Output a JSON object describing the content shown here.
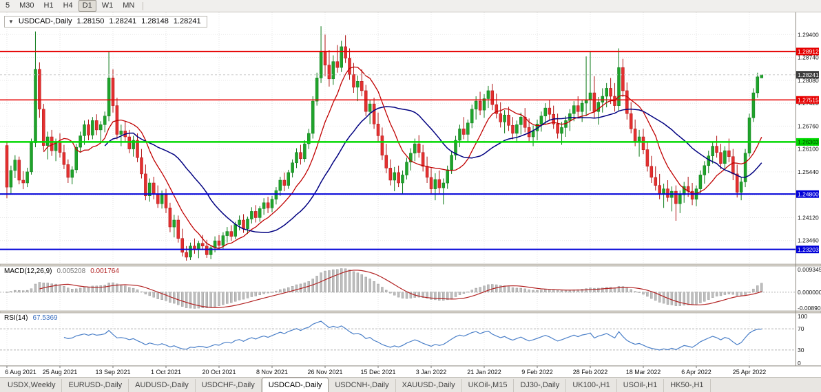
{
  "toolbar": {
    "timeframes": [
      "5",
      "M30",
      "H1",
      "H4",
      "D1",
      "W1",
      "MN"
    ],
    "active_timeframe": "D1"
  },
  "chart_title": {
    "dropdown_icon": "▼",
    "symbol": "USDCAD-,Daily",
    "open": "1.28150",
    "high": "1.28241",
    "low": "1.28148",
    "close": "1.28241"
  },
  "price_axis": {
    "min": 1.2278,
    "max": 1.3004,
    "ticks": [
      1.294,
      1.2874,
      1.2808,
      1.2742,
      1.2676,
      1.261,
      1.2544,
      1.2478,
      1.2412,
      1.2346
    ]
  },
  "chart_data": {
    "type": "candlestick",
    "symbol": "USDCAD-,Daily",
    "timeframe": "Daily",
    "x_labels": [
      "6 Aug 2021",
      "25 Aug 2021",
      "13 Sep 2021",
      "1 Oct 2021",
      "20 Oct 2021",
      "8 Nov 2021",
      "26 Nov 2021",
      "15 Dec 2021",
      "3 Jan 2022",
      "21 Jan 2022",
      "9 Feb 2022",
      "28 Feb 2022",
      "18 Mar 2022",
      "6 Apr 2022",
      "25 Apr 2022"
    ],
    "x_label_step": 13,
    "ma_fast_period": 10,
    "ma_slow_period": 25,
    "hlines": [
      {
        "value": 1.28912,
        "label": "1.28912",
        "color": "#e60000",
        "width": 2,
        "text_color": "#ffffff"
      },
      {
        "value": 1.27515,
        "label": "1.27515",
        "color": "#e60000",
        "width": 1.5,
        "text_color": "#ffffff"
      },
      {
        "value": 1.26303,
        "label": "1.26303",
        "color": "#00d800",
        "width": 2.5,
        "text_color": "#003300"
      },
      {
        "value": 1.248,
        "label": "1.24800",
        "color": "#0000d8",
        "width": 2,
        "text_color": "#ffffff"
      },
      {
        "value": 1.23203,
        "label": "1.23203",
        "color": "#0000d8",
        "width": 2,
        "text_color": "#ffffff"
      }
    ],
    "bid": {
      "value": 1.28241,
      "label": "1.28241",
      "bg": "#3c3c3c",
      "text_color": "#ffffff"
    },
    "candles": [
      [
        1.262,
        1.2632,
        1.2468,
        1.25
      ],
      [
        1.25,
        1.2562,
        1.2482,
        1.2548
      ],
      [
        1.2548,
        1.2592,
        1.2526,
        1.2578
      ],
      [
        1.2578,
        1.2588,
        1.2508,
        1.252
      ],
      [
        1.252,
        1.2546,
        1.2494,
        1.2512
      ],
      [
        1.2512,
        1.2556,
        1.25,
        1.2544
      ],
      [
        1.2544,
        1.264,
        1.2536,
        1.2628
      ],
      [
        1.2628,
        1.2949,
        1.2615,
        1.284
      ],
      [
        1.284,
        1.286,
        1.27,
        1.2725
      ],
      [
        1.2725,
        1.274,
        1.2605,
        1.262
      ],
      [
        1.262,
        1.266,
        1.258,
        1.2645
      ],
      [
        1.2645,
        1.2665,
        1.259,
        1.2605
      ],
      [
        1.2605,
        1.264,
        1.2575,
        1.263
      ],
      [
        1.263,
        1.2655,
        1.2585,
        1.26
      ],
      [
        1.26,
        1.2622,
        1.2552,
        1.2565
      ],
      [
        1.2565,
        1.258,
        1.2512,
        1.2528
      ],
      [
        1.2528,
        1.256,
        1.2508,
        1.255
      ],
      [
        1.255,
        1.2625,
        1.254,
        1.2615
      ],
      [
        1.2615,
        1.266,
        1.26,
        1.2648
      ],
      [
        1.2648,
        1.2692,
        1.2622,
        1.268
      ],
      [
        1.268,
        1.2695,
        1.2635,
        1.265
      ],
      [
        1.265,
        1.2702,
        1.2638,
        1.2692
      ],
      [
        1.2692,
        1.271,
        1.265,
        1.2665
      ],
      [
        1.2665,
        1.269,
        1.2632,
        1.268
      ],
      [
        1.268,
        1.2718,
        1.2658,
        1.2705
      ],
      [
        1.2705,
        1.289,
        1.269,
        1.2815
      ],
      [
        1.2815,
        1.284,
        1.2715,
        1.2735
      ],
      [
        1.2735,
        1.2758,
        1.2638,
        1.2652
      ],
      [
        1.2652,
        1.268,
        1.2618,
        1.2662
      ],
      [
        1.2662,
        1.269,
        1.263,
        1.2645
      ],
      [
        1.2645,
        1.2665,
        1.2598,
        1.261
      ],
      [
        1.261,
        1.2648,
        1.2588,
        1.2635
      ],
      [
        1.2635,
        1.2655,
        1.2572,
        1.2585
      ],
      [
        1.2585,
        1.261,
        1.2525,
        1.2538
      ],
      [
        1.2538,
        1.2565,
        1.2462,
        1.2475
      ],
      [
        1.2475,
        1.2525,
        1.2458,
        1.2512
      ],
      [
        1.2512,
        1.253,
        1.2465,
        1.248
      ],
      [
        1.248,
        1.2505,
        1.244,
        1.2452
      ],
      [
        1.2452,
        1.249,
        1.2438,
        1.2478
      ],
      [
        1.2478,
        1.2495,
        1.2425,
        1.244
      ],
      [
        1.244,
        1.2455,
        1.237,
        1.2385
      ],
      [
        1.2385,
        1.242,
        1.2355,
        1.2405
      ],
      [
        1.2405,
        1.2418,
        1.234,
        1.2352
      ],
      [
        1.2352,
        1.238,
        1.23,
        1.2312
      ],
      [
        1.2312,
        1.233,
        1.2288,
        1.2298
      ],
      [
        1.2298,
        1.234,
        1.229,
        1.233
      ],
      [
        1.233,
        1.2352,
        1.2308,
        1.232
      ],
      [
        1.232,
        1.2345,
        1.2295,
        1.2338
      ],
      [
        1.2338,
        1.2362,
        1.2318,
        1.233
      ],
      [
        1.233,
        1.2348,
        1.2296,
        1.2305
      ],
      [
        1.2305,
        1.2332,
        1.2292,
        1.2325
      ],
      [
        1.2325,
        1.2358,
        1.2312,
        1.2345
      ],
      [
        1.2345,
        1.2362,
        1.232,
        1.2332
      ],
      [
        1.2332,
        1.237,
        1.2322,
        1.236
      ],
      [
        1.236,
        1.2385,
        1.234,
        1.2372
      ],
      [
        1.2372,
        1.239,
        1.2345,
        1.2358
      ],
      [
        1.2358,
        1.24,
        1.235,
        1.2392
      ],
      [
        1.2392,
        1.2418,
        1.2375,
        1.2405
      ],
      [
        1.2405,
        1.2422,
        1.2368,
        1.238
      ],
      [
        1.238,
        1.2415,
        1.2365,
        1.2408
      ],
      [
        1.2408,
        1.2442,
        1.2395,
        1.243
      ],
      [
        1.243,
        1.2448,
        1.2398,
        1.2412
      ],
      [
        1.2412,
        1.2445,
        1.24,
        1.2438
      ],
      [
        1.2438,
        1.2468,
        1.242,
        1.2455
      ],
      [
        1.2455,
        1.2472,
        1.2425,
        1.244
      ],
      [
        1.244,
        1.2475,
        1.2428,
        1.2465
      ],
      [
        1.2465,
        1.25,
        1.245,
        1.249
      ],
      [
        1.249,
        1.253,
        1.2475,
        1.252
      ],
      [
        1.252,
        1.2542,
        1.2488,
        1.2505
      ],
      [
        1.2505,
        1.255,
        1.2495,
        1.2542
      ],
      [
        1.2542,
        1.258,
        1.2528,
        1.257
      ],
      [
        1.257,
        1.2612,
        1.2555,
        1.26
      ],
      [
        1.26,
        1.2622,
        1.2565,
        1.2582
      ],
      [
        1.2582,
        1.2635,
        1.2572,
        1.2625
      ],
      [
        1.2625,
        1.2668,
        1.261,
        1.2655
      ],
      [
        1.2655,
        1.2762,
        1.264,
        1.2748
      ],
      [
        1.2748,
        1.283,
        1.2735,
        1.2815
      ],
      [
        1.2815,
        1.2964,
        1.28,
        1.289
      ],
      [
        1.289,
        1.294,
        1.282,
        1.2852
      ],
      [
        1.2852,
        1.2895,
        1.279,
        1.2812
      ],
      [
        1.2812,
        1.288,
        1.2795,
        1.2862
      ],
      [
        1.2862,
        1.291,
        1.283,
        1.2845
      ],
      [
        1.2845,
        1.2922,
        1.2832,
        1.2905
      ],
      [
        1.2905,
        1.2938,
        1.2858,
        1.2872
      ],
      [
        1.2872,
        1.29,
        1.281,
        1.2825
      ],
      [
        1.2825,
        1.2858,
        1.2772,
        1.2788
      ],
      [
        1.2788,
        1.2822,
        1.2748,
        1.2805
      ],
      [
        1.2805,
        1.284,
        1.2762,
        1.2778
      ],
      [
        1.2778,
        1.2795,
        1.2705,
        1.2718
      ],
      [
        1.2718,
        1.2752,
        1.2682,
        1.274
      ],
      [
        1.274,
        1.2758,
        1.2668,
        1.2682
      ],
      [
        1.2682,
        1.2715,
        1.2632,
        1.2648
      ],
      [
        1.2648,
        1.2672,
        1.2578,
        1.2592
      ],
      [
        1.2592,
        1.2625,
        1.254,
        1.2555
      ],
      [
        1.2555,
        1.258,
        1.2505,
        1.252
      ],
      [
        1.252,
        1.2558,
        1.2488,
        1.2542
      ],
      [
        1.2542,
        1.2562,
        1.25,
        1.2512
      ],
      [
        1.2512,
        1.2548,
        1.248,
        1.2535
      ],
      [
        1.2535,
        1.2585,
        1.2522,
        1.2572
      ],
      [
        1.2572,
        1.2612,
        1.2548,
        1.2598
      ],
      [
        1.2598,
        1.264,
        1.2575,
        1.2625
      ],
      [
        1.2625,
        1.265,
        1.2585,
        1.26
      ],
      [
        1.26,
        1.2622,
        1.2545,
        1.256
      ],
      [
        1.256,
        1.2588,
        1.2512,
        1.2528
      ],
      [
        1.2528,
        1.2555,
        1.2478,
        1.2495
      ],
      [
        1.2495,
        1.254,
        1.2462,
        1.2522
      ],
      [
        1.2522,
        1.2548,
        1.2482,
        1.2498
      ],
      [
        1.2498,
        1.2525,
        1.245,
        1.2512
      ],
      [
        1.2512,
        1.2562,
        1.2495,
        1.255
      ],
      [
        1.255,
        1.2605,
        1.2538,
        1.2592
      ],
      [
        1.2592,
        1.2648,
        1.2578,
        1.2635
      ],
      [
        1.2635,
        1.268,
        1.2615,
        1.2668
      ],
      [
        1.2668,
        1.2702,
        1.2638,
        1.2652
      ],
      [
        1.2652,
        1.2695,
        1.2632,
        1.2685
      ],
      [
        1.2685,
        1.2738,
        1.267,
        1.2725
      ],
      [
        1.2725,
        1.2762,
        1.2695,
        1.2748
      ],
      [
        1.2748,
        1.2775,
        1.2708,
        1.2722
      ],
      [
        1.2722,
        1.2768,
        1.27,
        1.2755
      ],
      [
        1.2755,
        1.2792,
        1.2728,
        1.2778
      ],
      [
        1.2778,
        1.2798,
        1.2722,
        1.2738
      ],
      [
        1.2738,
        1.277,
        1.2698,
        1.2712
      ],
      [
        1.2712,
        1.2745,
        1.2672,
        1.2688
      ],
      [
        1.2688,
        1.2722,
        1.2655,
        1.2708
      ],
      [
        1.2708,
        1.2732,
        1.2662,
        1.2678
      ],
      [
        1.2678,
        1.2702,
        1.2638,
        1.2655
      ],
      [
        1.2655,
        1.2692,
        1.2628,
        1.268
      ],
      [
        1.268,
        1.2715,
        1.2652,
        1.2702
      ],
      [
        1.2702,
        1.2728,
        1.2658,
        1.2672
      ],
      [
        1.2672,
        1.2698,
        1.2632,
        1.2645
      ],
      [
        1.2645,
        1.2678,
        1.2618,
        1.2662
      ],
      [
        1.2662,
        1.2695,
        1.2635,
        1.2682
      ],
      [
        1.2682,
        1.2718,
        1.266,
        1.2705
      ],
      [
        1.2705,
        1.2742,
        1.2682,
        1.2728
      ],
      [
        1.2728,
        1.2752,
        1.2692,
        1.271
      ],
      [
        1.271,
        1.2735,
        1.2668,
        1.2682
      ],
      [
        1.2682,
        1.2712,
        1.264,
        1.2655
      ],
      [
        1.2655,
        1.2688,
        1.2622,
        1.2672
      ],
      [
        1.2672,
        1.2705,
        1.2645,
        1.2692
      ],
      [
        1.2692,
        1.2725,
        1.2662,
        1.2712
      ],
      [
        1.2712,
        1.2748,
        1.269,
        1.2735
      ],
      [
        1.2735,
        1.2762,
        1.27,
        1.2718
      ],
      [
        1.2718,
        1.2752,
        1.2688,
        1.2742
      ],
      [
        1.2742,
        1.2877,
        1.2705,
        1.2752
      ],
      [
        1.2752,
        1.289,
        1.272,
        1.2772
      ],
      [
        1.2772,
        1.282,
        1.27,
        1.2718
      ],
      [
        1.2718,
        1.276,
        1.268,
        1.2745
      ],
      [
        1.2745,
        1.2785,
        1.2715,
        1.2762
      ],
      [
        1.2762,
        1.28,
        1.273,
        1.2785
      ],
      [
        1.2785,
        1.2815,
        1.274,
        1.2762
      ],
      [
        1.2762,
        1.28,
        1.2718,
        1.2735
      ],
      [
        1.2735,
        1.29,
        1.272,
        1.2845
      ],
      [
        1.2845,
        1.287,
        1.276,
        1.2778
      ],
      [
        1.2778,
        1.2802,
        1.2695,
        1.2712
      ],
      [
        1.2712,
        1.2745,
        1.2655,
        1.2668
      ],
      [
        1.2668,
        1.2695,
        1.2618,
        1.2632
      ],
      [
        1.2632,
        1.2665,
        1.2588,
        1.2645
      ],
      [
        1.2645,
        1.2668,
        1.2595,
        1.2608
      ],
      [
        1.2608,
        1.263,
        1.2545,
        1.256
      ],
      [
        1.256,
        1.259,
        1.2512,
        1.2528
      ],
      [
        1.2528,
        1.256,
        1.249,
        1.2505
      ],
      [
        1.2505,
        1.2538,
        1.2465,
        1.248
      ],
      [
        1.248,
        1.251,
        1.244,
        1.2495
      ],
      [
        1.2495,
        1.252,
        1.2458,
        1.247
      ],
      [
        1.247,
        1.2502,
        1.243,
        1.2488
      ],
      [
        1.2488,
        1.2505,
        1.2403,
        1.2452
      ],
      [
        1.2452,
        1.249,
        1.2425,
        1.2478
      ],
      [
        1.2478,
        1.2515,
        1.2455,
        1.2502
      ],
      [
        1.2502,
        1.253,
        1.2472,
        1.2488
      ],
      [
        1.2488,
        1.2512,
        1.2448,
        1.2465
      ],
      [
        1.2465,
        1.2505,
        1.2445,
        1.2495
      ],
      [
        1.2495,
        1.2548,
        1.248,
        1.2535
      ],
      [
        1.2535,
        1.2575,
        1.251,
        1.2562
      ],
      [
        1.2562,
        1.2605,
        1.254,
        1.259
      ],
      [
        1.259,
        1.2632,
        1.2568,
        1.2618
      ],
      [
        1.2618,
        1.2648,
        1.2585,
        1.26
      ],
      [
        1.26,
        1.2625,
        1.2552,
        1.2568
      ],
      [
        1.2568,
        1.2618,
        1.2548,
        1.2605
      ],
      [
        1.2605,
        1.264,
        1.2572,
        1.2588
      ],
      [
        1.2588,
        1.261,
        1.252,
        1.2538
      ],
      [
        1.2538,
        1.2565,
        1.247,
        1.2485
      ],
      [
        1.2485,
        1.2528,
        1.2462,
        1.2515
      ],
      [
        1.2515,
        1.261,
        1.25,
        1.2598
      ],
      [
        1.2598,
        1.2712,
        1.2588,
        1.27
      ],
      [
        1.27,
        1.2785,
        1.2688,
        1.2772
      ],
      [
        1.2772,
        1.283,
        1.2758,
        1.2818
      ],
      [
        1.2815,
        1.28241,
        1.28148,
        1.28241
      ]
    ]
  },
  "macd": {
    "name": "MACD(12,26,9)",
    "main_value": "0.005208",
    "signal_value": "0.001764",
    "scale_top": "0.009345",
    "scale_zero": "0.000000",
    "scale_bottom": "-0.00890"
  },
  "rsi": {
    "name": "RSI(14)",
    "value": "67.5369",
    "scale_top": "100",
    "scale_bottom": "0",
    "levels": [
      70,
      30
    ]
  },
  "tabs": [
    "USDX,Weekly",
    "EURUSD-,Daily",
    "AUDUSD-,Daily",
    "USDCHF-,Daily",
    "USDCAD-,Daily",
    "USDCNH-,Daily",
    "XAUUSD-,Daily",
    "UKOil-,M15",
    "DJ30-,Daily",
    "UK100-,H1",
    "USOil-,H1",
    "HK50-,H1"
  ],
  "active_tab": "USDCAD-,Daily",
  "colors": {
    "up": "#1fa32b",
    "up_stroke": "#0c7a18",
    "down": "#e33030",
    "down_stroke": "#b01212",
    "ma_fast": "#c00000",
    "ma_slow": "#000080",
    "grid": "#e6e6e6",
    "macd_hist": "#bdbdbd",
    "macd_hist_stroke": "#8f8f8f",
    "macd_signal": "#b22222",
    "rsi_line": "#4a7fc8",
    "level_dash": "#b5b5b5",
    "axis_text": "#111111",
    "scale_border": "#8a867e",
    "bid_line": "#c8c8c8"
  }
}
